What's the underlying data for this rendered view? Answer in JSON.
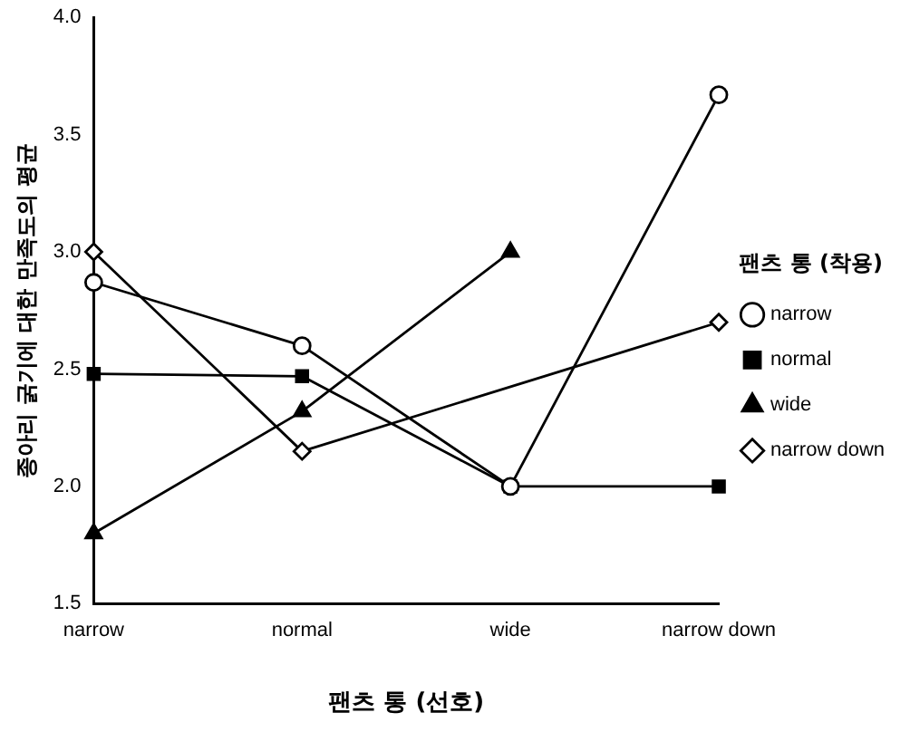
{
  "chart_data": {
    "type": "line",
    "xlabel": "팬츠 통 (선호)",
    "ylabel": "종아리 굵기에 대한 만족도의 평균",
    "legend_title": "팬츠 통 (착용)",
    "categories": [
      "narrow",
      "normal",
      "wide",
      "narrow down"
    ],
    "series": [
      {
        "name": "narrow",
        "color": "#000000",
        "marker": "circle",
        "values": [
          2.87,
          2.6,
          2.0,
          3.67
        ]
      },
      {
        "name": "normal",
        "color": "#000000",
        "marker": "square",
        "values": [
          2.48,
          2.47,
          2.0,
          2.0
        ]
      },
      {
        "name": "wide",
        "color": "#000000",
        "marker": "triangle",
        "values": [
          1.8,
          2.32,
          3.0,
          null
        ]
      },
      {
        "name": "narrow down",
        "color": "#000000",
        "marker": "diamond",
        "values": [
          3.0,
          2.15,
          null,
          2.7
        ]
      }
    ],
    "ylim": [
      1.5,
      4.0
    ],
    "yticks": [
      {
        "value": 1.5,
        "label": "1.5"
      },
      {
        "value": 2,
        "label": "2.0"
      },
      {
        "value": 2.5,
        "label": "2.5"
      },
      {
        "value": 3,
        "label": "3.0"
      },
      {
        "value": 3.5,
        "label": "3.5"
      },
      {
        "value": 4,
        "label": "4.0"
      }
    ],
    "grid": false,
    "legend": "right",
    "line_style": "solid"
  }
}
